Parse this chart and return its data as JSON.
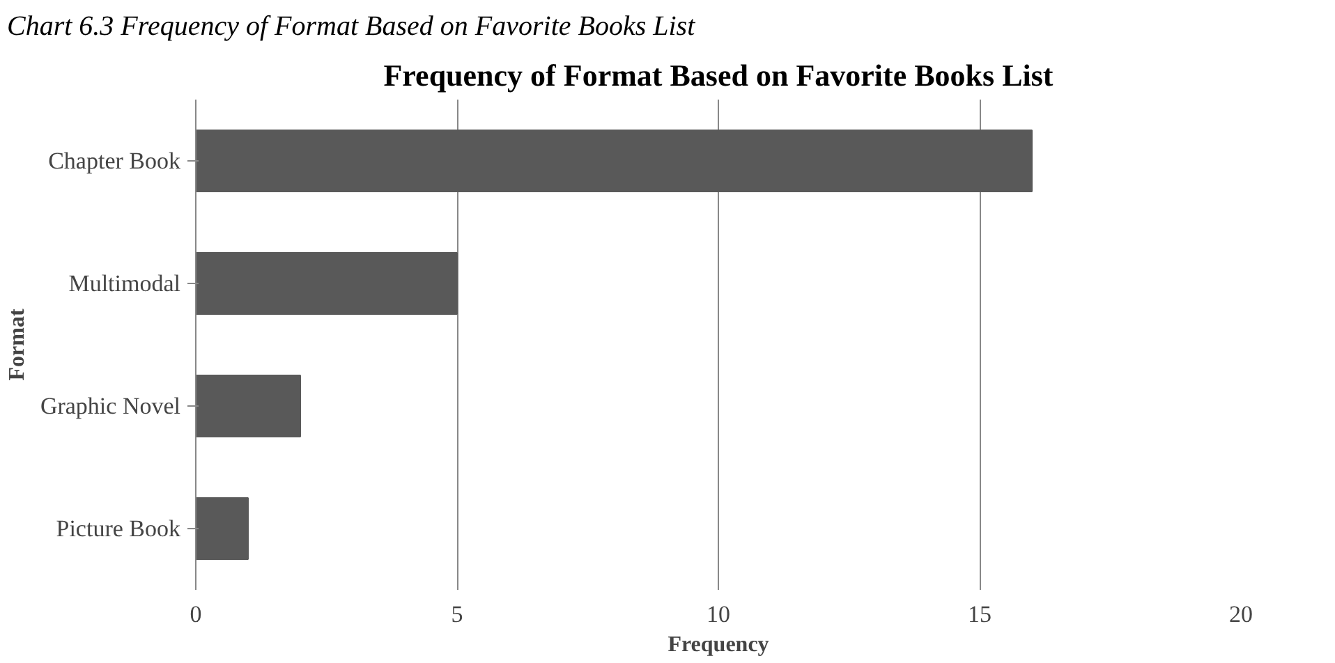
{
  "chart_data": {
    "type": "bar",
    "orientation": "horizontal",
    "title": "Frequency of Format Based on Favorite Books List",
    "annotations": [
      "Chart 6.3 Frequency of Format Based on Favorite Books List"
    ],
    "xlabel": "Frequency",
    "ylabel": "Format",
    "categories": [
      "Chapter Book",
      "Multimodal",
      "Graphic Novel",
      "Picture Book"
    ],
    "values": [
      16,
      5,
      2,
      1
    ],
    "color": "#595959",
    "xlim": [
      0,
      20
    ],
    "xticks": [
      0,
      5,
      10,
      15,
      20
    ],
    "grid": "x"
  }
}
